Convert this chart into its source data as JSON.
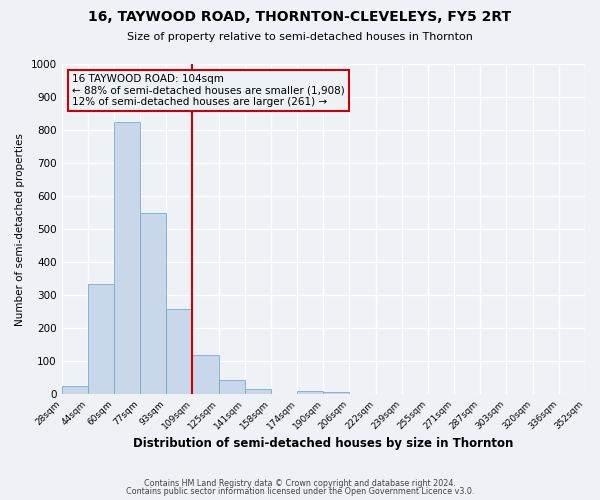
{
  "title": "16, TAYWOOD ROAD, THORNTON-CLEVELEYS, FY5 2RT",
  "subtitle": "Size of property relative to semi-detached houses in Thornton",
  "xlabel": "Distribution of semi-detached houses by size in Thornton",
  "ylabel": "Number of semi-detached properties",
  "bar_color": "#c8d8ea",
  "bar_edge_color": "#7aaac8",
  "background_color": "#eef2f7",
  "grid_color": "white",
  "bin_labels": [
    "28sqm",
    "44sqm",
    "60sqm",
    "77sqm",
    "93sqm",
    "109sqm",
    "125sqm",
    "141sqm",
    "158sqm",
    "174sqm",
    "190sqm",
    "206sqm",
    "222sqm",
    "239sqm",
    "255sqm",
    "271sqm",
    "287sqm",
    "303sqm",
    "320sqm",
    "336sqm",
    "352sqm"
  ],
  "bar_heights": [
    25,
    333,
    825,
    548,
    258,
    118,
    45,
    18,
    0,
    12,
    8,
    0,
    0,
    0,
    0,
    0,
    0,
    0,
    0,
    0
  ],
  "property_bin": 5,
  "vline_color": "#cc0000",
  "annotation_title": "16 TAYWOOD ROAD: 104sqm",
  "annotation_line1": "← 88% of semi-detached houses are smaller (1,908)",
  "annotation_line2": "12% of semi-detached houses are larger (261) →",
  "annotation_box_color": "#cc0000",
  "ylim": [
    0,
    1000
  ],
  "yticks": [
    0,
    100,
    200,
    300,
    400,
    500,
    600,
    700,
    800,
    900,
    1000
  ],
  "footer1": "Contains HM Land Registry data © Crown copyright and database right 2024.",
  "footer2": "Contains public sector information licensed under the Open Government Licence v3.0."
}
